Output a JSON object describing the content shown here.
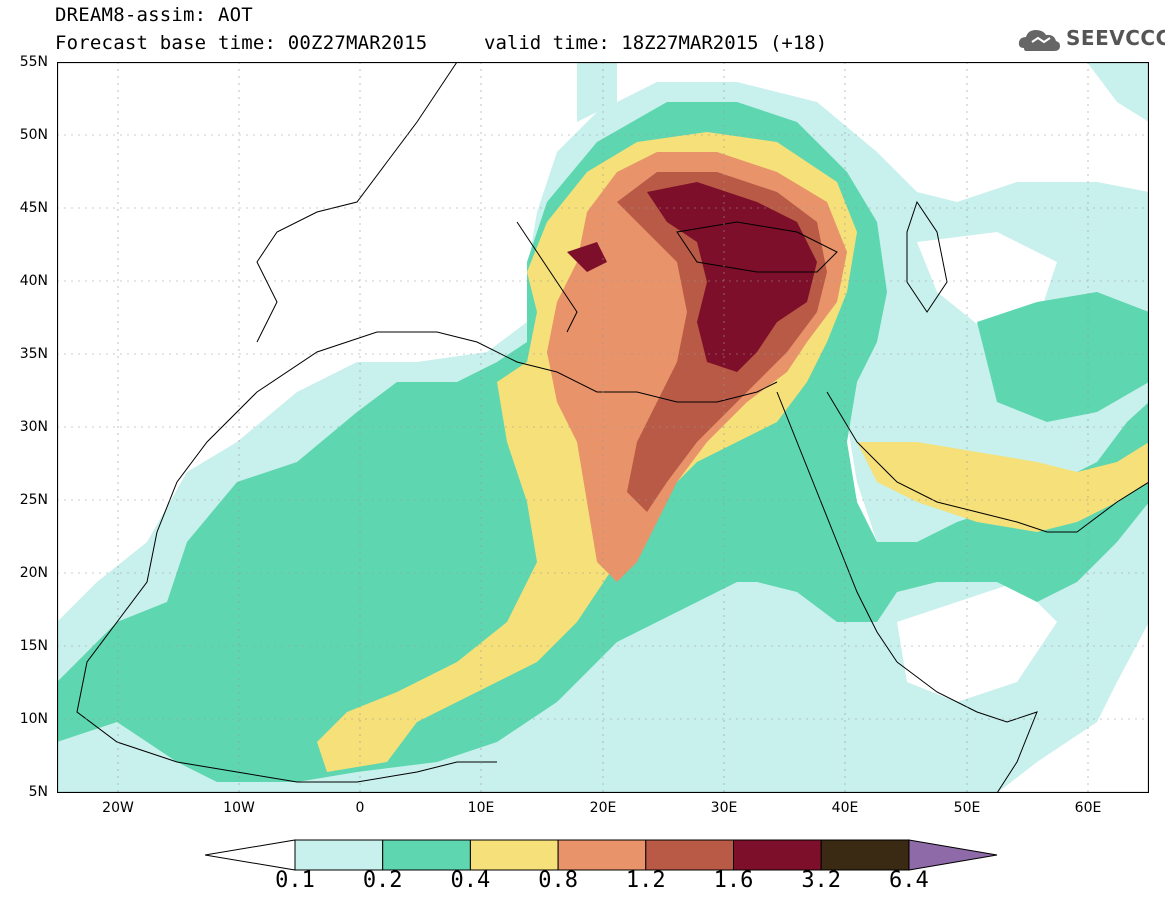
{
  "header": {
    "title_line1": "DREAM8-assim: AOT",
    "title_line2": "Forecast base time: 00Z27MAR2015",
    "valid_time": "valid time: 18Z27MAR2015 (+18)",
    "logo_text": "SEEVCCC"
  },
  "map": {
    "lon_range": [
      -25,
      65
    ],
    "lat_range": [
      5,
      55
    ],
    "lat_labels": [
      "55N",
      "50N",
      "45N",
      "40N",
      "35N",
      "30N",
      "25N",
      "20N",
      "15N",
      "10N",
      "5N"
    ],
    "lon_labels": [
      "20W",
      "10W",
      "0",
      "10E",
      "20E",
      "30E",
      "40E",
      "50E",
      "60E"
    ]
  },
  "legend": {
    "levels": [
      "0.1",
      "0.2",
      "0.4",
      "0.8",
      "1.2",
      "1.6",
      "3.2",
      "6.4"
    ],
    "colors": [
      "#c8f0ec",
      "#5ed6b0",
      "#f5e07a",
      "#e8936a",
      "#b85a45",
      "#7d0f2a",
      "#3a2a14",
      "#8e6aa8"
    ]
  }
}
